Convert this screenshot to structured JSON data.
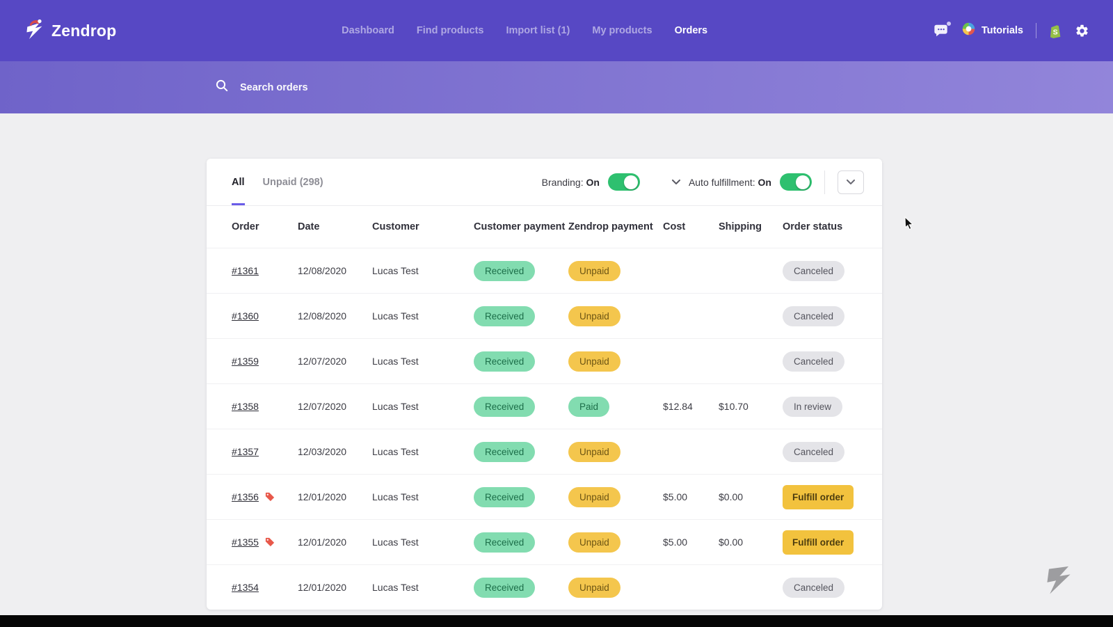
{
  "navbar": {
    "brand": "Zendrop",
    "items": [
      {
        "label": "Dashboard"
      },
      {
        "label": "Find products"
      },
      {
        "label": "Import list (1)"
      },
      {
        "label": "My products"
      },
      {
        "label": "Orders"
      }
    ],
    "active_item": "Orders",
    "tutorials_label": "Tutorials"
  },
  "search": {
    "placeholder": "Search orders"
  },
  "panel": {
    "tabs": [
      {
        "label": "All",
        "active": true
      },
      {
        "label": "Unpaid (298)",
        "active": false
      }
    ],
    "branding": {
      "label": "Branding:",
      "state": "On"
    },
    "auto_fulfillment": {
      "label": "Auto fulfillment:",
      "state": "On"
    }
  },
  "table": {
    "headers": [
      "Order",
      "Date",
      "Customer",
      "Customer payment",
      "Zendrop payment",
      "Cost",
      "Shipping",
      "Order status"
    ],
    "rows": [
      {
        "order": "#1361",
        "tagged": false,
        "date": "12/08/2020",
        "customer": "Lucas Test",
        "customer_payment": "Received",
        "zendrop_payment": "Unpaid",
        "cost": "",
        "shipping": "",
        "status": "Canceled",
        "status_style": "pill-gray"
      },
      {
        "order": "#1360",
        "tagged": false,
        "date": "12/08/2020",
        "customer": "Lucas Test",
        "customer_payment": "Received",
        "zendrop_payment": "Unpaid",
        "cost": "",
        "shipping": "",
        "status": "Canceled",
        "status_style": "pill-gray"
      },
      {
        "order": "#1359",
        "tagged": false,
        "date": "12/07/2020",
        "customer": "Lucas Test",
        "customer_payment": "Received",
        "zendrop_payment": "Unpaid",
        "cost": "",
        "shipping": "",
        "status": "Canceled",
        "status_style": "pill-gray"
      },
      {
        "order": "#1358",
        "tagged": false,
        "date": "12/07/2020",
        "customer": "Lucas Test",
        "customer_payment": "Received",
        "zendrop_payment": "Paid",
        "cost": "$12.84",
        "shipping": "$10.70",
        "status": "In review",
        "status_style": "pill-gray"
      },
      {
        "order": "#1357",
        "tagged": false,
        "date": "12/03/2020",
        "customer": "Lucas Test",
        "customer_payment": "Received",
        "zendrop_payment": "Unpaid",
        "cost": "",
        "shipping": "",
        "status": "Canceled",
        "status_style": "pill-gray"
      },
      {
        "order": "#1356",
        "tagged": true,
        "date": "12/01/2020",
        "customer": "Lucas Test",
        "customer_payment": "Received",
        "zendrop_payment": "Unpaid",
        "cost": "$5.00",
        "shipping": "$0.00",
        "status": "Fulfill order",
        "status_style": "button-yellow"
      },
      {
        "order": "#1355",
        "tagged": true,
        "date": "12/01/2020",
        "customer": "Lucas Test",
        "customer_payment": "Received",
        "zendrop_payment": "Unpaid",
        "cost": "$5.00",
        "shipping": "$0.00",
        "status": "Fulfill order",
        "status_style": "button-yellow"
      },
      {
        "order": "#1354",
        "tagged": false,
        "date": "12/01/2020",
        "customer": "Lucas Test",
        "customer_payment": "Received",
        "zendrop_payment": "Unpaid",
        "cost": "",
        "shipping": "",
        "status": "Canceled",
        "status_style": "pill-gray"
      }
    ]
  },
  "colors": {
    "navbar": "#5748c4",
    "accent": "#6a5ce8",
    "toggle_on": "#2ec06f",
    "pill_green_bg": "#82dcb0",
    "pill_yellow_bg": "#f4c64d",
    "pill_gray_bg": "#e4e4e8",
    "fulfill_button_bg": "#f2c23e"
  }
}
